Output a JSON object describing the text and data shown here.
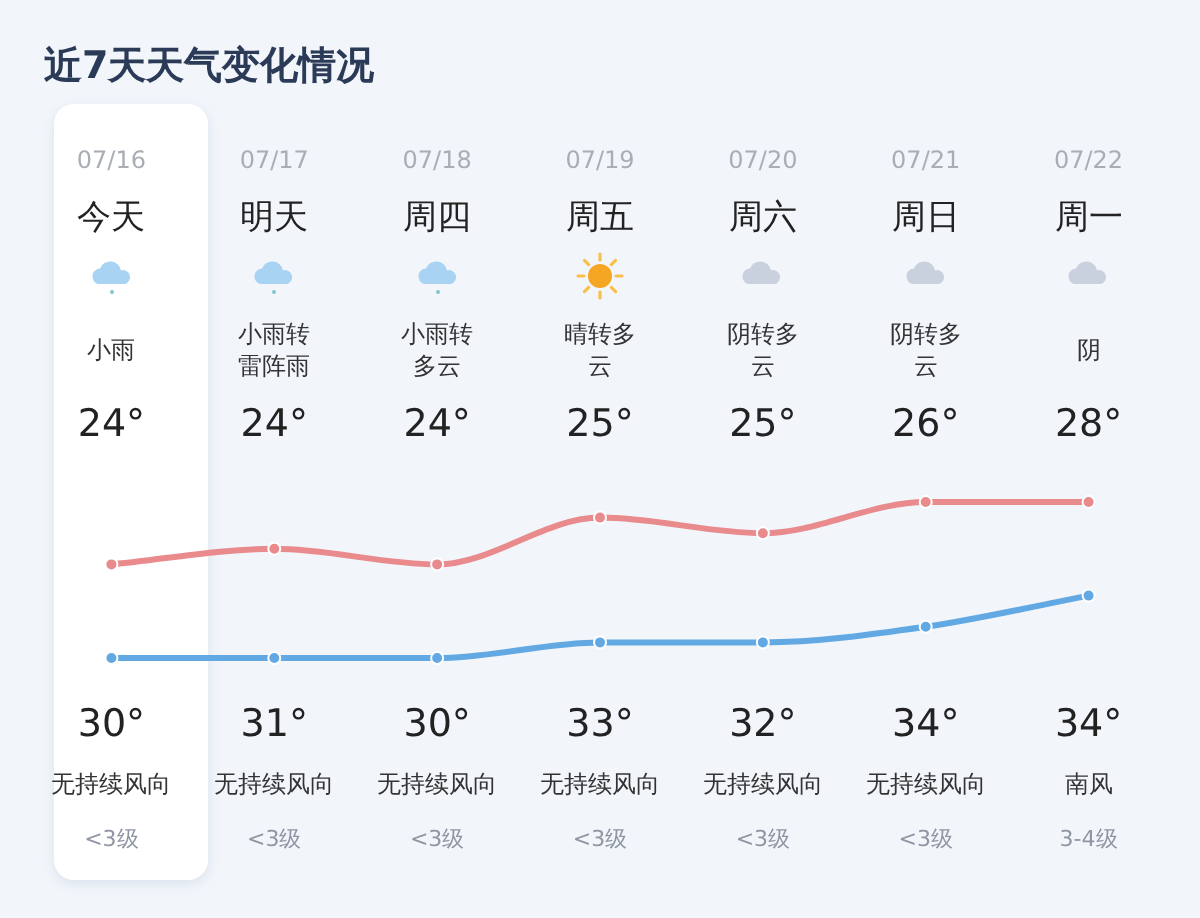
{
  "chart_data": {
    "type": "line",
    "title": "近7天天气变化情况",
    "categories": [
      "07/16",
      "07/17",
      "07/18",
      "07/19",
      "07/20",
      "07/21",
      "07/22"
    ],
    "series": [
      {
        "color": "#62a8e3",
        "values": [
          24,
          24,
          24,
          25,
          25,
          26,
          28
        ],
        "value_labels": [
          "24°",
          "24°",
          "24°",
          "25°",
          "25°",
          "26°",
          "28°"
        ]
      },
      {
        "color": "#e98a8d",
        "values": [
          30,
          31,
          30,
          33,
          32,
          34,
          34
        ],
        "value_labels": [
          "30°",
          "31°",
          "30°",
          "33°",
          "32°",
          "34°",
          "34°"
        ]
      }
    ],
    "annotations": [
      "今天",
      "明天",
      "周四",
      "周五",
      "周六",
      "周日",
      "周一",
      "小雨",
      "小雨转雷阵雨",
      "小雨转多云",
      "晴转多云",
      "阴转多云",
      "阴转多云",
      "阴",
      "无持续风向",
      "无持续风向",
      "无持续风向",
      "无持续风向",
      "无持续风向",
      "无持续风向",
      "南风",
      "<3级",
      "<3级",
      "<3级",
      "<3级",
      "<3级",
      "<3级",
      "3-4级"
    ],
    "marker": "circle",
    "line_style": "solid",
    "legend": false
  }
}
